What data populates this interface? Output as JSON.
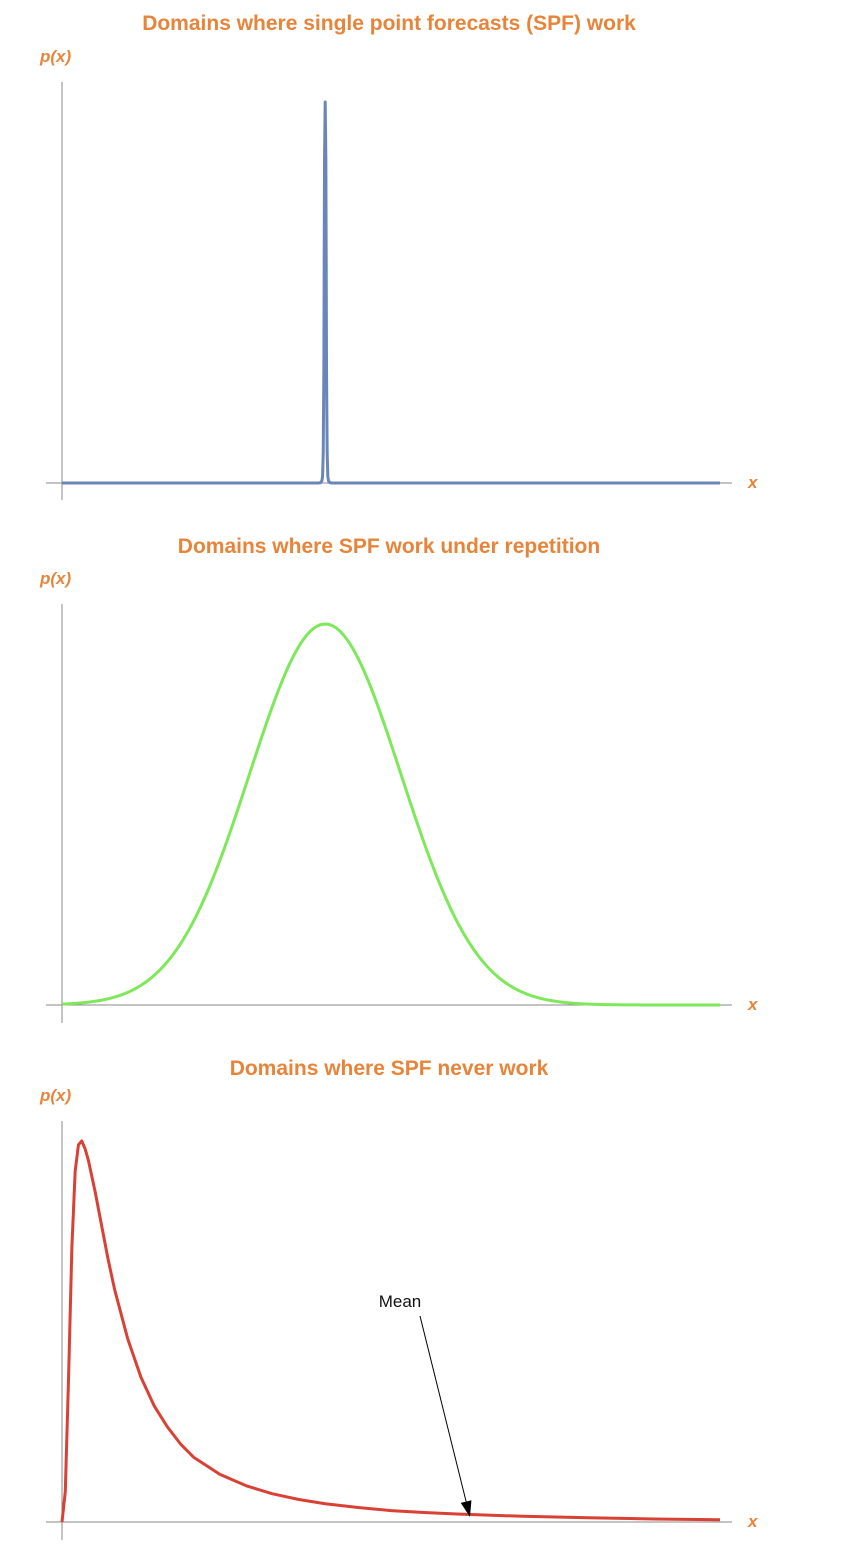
{
  "colors": {
    "text_accent": "#e8843a",
    "axis": "#8a8a8a",
    "annotation": "#000000"
  },
  "chart_data": [
    {
      "type": "line",
      "title": "Domains where single point forecasts (SPF) work",
      "xlabel": "x",
      "ylabel": "p(x)",
      "distribution": "spike",
      "xlim": [
        0,
        10
      ],
      "ylim": [
        0,
        1
      ],
      "grid": false,
      "series": [
        {
          "color": "#6a86b8",
          "x": [
            0,
            3.9,
            3.93,
            3.95,
            3.96,
            3.97,
            3.98,
            3.985,
            3.99,
            4.0,
            4.01,
            4.015,
            4.02,
            4.03,
            4.04,
            4.05,
            4.07,
            4.1,
            10
          ],
          "y": [
            0,
            0,
            0.001,
            0.006,
            0.017,
            0.08,
            0.3,
            0.6,
            0.85,
            1.0,
            0.85,
            0.6,
            0.3,
            0.08,
            0.017,
            0.006,
            0.001,
            0,
            0
          ]
        }
      ]
    },
    {
      "type": "line",
      "title": "Domains where SPF work under repetition",
      "xlabel": "x",
      "ylabel": "p(x)",
      "distribution": "normal",
      "xlim": [
        0,
        10
      ],
      "ylim": [
        0,
        1
      ],
      "grid": false,
      "series": [
        {
          "color": "#7de85a",
          "x": [
            0,
            0.5,
            1.0,
            1.5,
            2.0,
            2.5,
            3.0,
            3.5,
            4.0,
            4.5,
            5.0,
            5.5,
            6.0,
            6.5,
            7.0,
            7.5,
            8.0,
            8.5,
            9.0,
            9.5,
            10.0
          ],
          "y": [
            0,
            0.002,
            0.011,
            0.044,
            0.135,
            0.325,
            0.607,
            0.882,
            1.0,
            0.882,
            0.607,
            0.325,
            0.135,
            0.044,
            0.011,
            0.002,
            0,
            0,
            0,
            0,
            0
          ]
        }
      ]
    },
    {
      "type": "line",
      "title": "Domains where SPF never work",
      "xlabel": "x",
      "ylabel": "p(x)",
      "distribution": "heavy-tailed",
      "xlim": [
        0,
        10
      ],
      "ylim": [
        0,
        1
      ],
      "grid": false,
      "series": [
        {
          "color": "#d94135",
          "x": [
            0,
            0.05,
            0.1,
            0.15,
            0.2,
            0.25,
            0.3,
            0.35,
            0.4,
            0.5,
            0.6,
            0.7,
            0.8,
            1.0,
            1.2,
            1.4,
            1.6,
            1.8,
            2.0,
            2.4,
            2.8,
            3.2,
            3.6,
            4.0,
            4.5,
            5.0,
            5.5,
            6.0,
            7.0,
            8.0,
            9.0,
            10.0
          ],
          "y": [
            0,
            0.08,
            0.38,
            0.72,
            0.92,
            0.99,
            1.0,
            0.98,
            0.95,
            0.87,
            0.78,
            0.69,
            0.61,
            0.48,
            0.38,
            0.305,
            0.25,
            0.205,
            0.17,
            0.125,
            0.095,
            0.074,
            0.059,
            0.048,
            0.038,
            0.03,
            0.025,
            0.021,
            0.015,
            0.011,
            0.008,
            0.006
          ]
        }
      ],
      "annotations": [
        {
          "text": "Mean",
          "x": 6.2,
          "y": 0.013
        }
      ]
    }
  ]
}
